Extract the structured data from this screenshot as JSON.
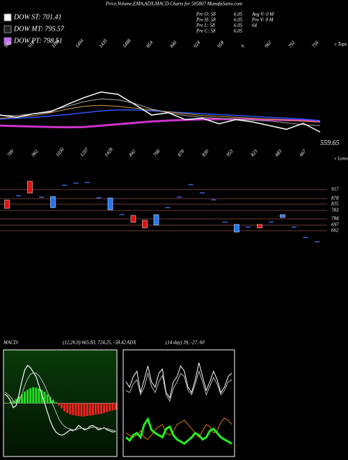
{
  "header": {
    "title": "Price,Volume,EMA,ADX,MACD Charts for 505807 MunafaSutra.com",
    "legend": [
      {
        "label": "DOW ST: 701.41",
        "color": "#ffffff"
      },
      {
        "label": "DOW MT: 795.57",
        "color": "#222222"
      },
      {
        "label": "DOW PT: 798.51",
        "color": "#cc66ff"
      }
    ],
    "info": [
      [
        "Pre O: 58",
        "6.05",
        "Avg V: 0 M"
      ],
      [
        "Pre H: 58",
        "6.05",
        "Pre V: 0 M"
      ],
      [
        "Pre L: 58",
        "6.05",
        "64"
      ],
      [
        "Pre C: 58",
        "6.05",
        ""
      ]
    ]
  },
  "chart_data": [
    {
      "type": "line",
      "ylim": [
        200,
        1600
      ],
      "tops": [
        941,
        910,
        1106,
        1494,
        1435,
        1488,
        854,
        840,
        924,
        958,
        9,
        962,
        792,
        756
      ],
      "tops_label": "« Tops",
      "lows": [
        789,
        962,
        1030,
        1207,
        1428,
        842,
        798,
        878,
        830,
        953,
        823,
        683,
        667
      ],
      "lows_label": "« Lows",
      "last_price": 559.65,
      "series": [
        {
          "color": "#cc33cc",
          "width": 3,
          "values": [
            690,
            685,
            680,
            675,
            672,
            675,
            690,
            705,
            720,
            735,
            745,
            752,
            758,
            760,
            760,
            758,
            755,
            750,
            745,
            735
          ]
        },
        {
          "color": "#3355ff",
          "width": 1.5,
          "values": [
            760,
            770,
            780,
            795,
            810,
            830,
            850,
            860,
            860,
            850,
            840,
            830,
            820,
            810,
            800,
            790,
            780,
            770,
            760,
            745
          ]
        },
        {
          "color": "#d0a040",
          "width": 1,
          "values": [
            770,
            785,
            800,
            830,
            870,
            900,
            910,
            900,
            880,
            860,
            840,
            820,
            800,
            790,
            780,
            770,
            760,
            750,
            740,
            730
          ]
        },
        {
          "color": "#aaaaaa",
          "width": 1,
          "values": [
            800,
            800,
            820,
            850,
            900,
            950,
            980,
            970,
            930,
            870,
            830,
            800,
            780,
            770,
            760,
            750,
            740,
            720,
            700,
            690
          ]
        },
        {
          "color": "#ffffff",
          "width": 1.5,
          "values": [
            805,
            780,
            820,
            840,
            920,
            995,
            1055,
            1030,
            920,
            805,
            830,
            755,
            770,
            710,
            755,
            730,
            690,
            650,
            715,
            620
          ]
        }
      ]
    },
    {
      "type": "candlestick",
      "ylim": [
        600,
        1100
      ],
      "up_color": "#2277ee",
      "down_color": "#dd1111",
      "flat_color": "#3366dd",
      "open": [
        915,
        950,
        1050,
        940,
        860,
        1025,
        1040,
        1045,
        935,
        845,
        815,
        805,
        770,
        735,
        865,
        940,
        1030,
        970,
        920,
        760,
        685,
        725,
        740,
        760,
        790,
        725,
        650,
        620
      ],
      "close": [
        855,
        950,
        965,
        940,
        940,
        1025,
        1040,
        1045,
        935,
        930,
        815,
        755,
        715,
        810,
        865,
        940,
        1030,
        970,
        920,
        760,
        740,
        725,
        715,
        760,
        810,
        725,
        650,
        620
      ],
      "levels": [
        917,
        878,
        835,
        783,
        784,
        697,
        662
      ]
    },
    {
      "type": "macd",
      "label": "MACD:",
      "params": "(12,26,9) 665.83, 724.25, -58.42",
      "ylim": [
        -120,
        120
      ],
      "histogram": [
        0,
        0,
        3,
        6,
        10,
        15,
        20,
        26,
        30,
        34,
        36,
        35,
        33,
        30,
        26,
        20,
        14,
        8,
        2,
        -5,
        -12,
        -18,
        -22,
        -25,
        -27,
        -28,
        -29,
        -30,
        -30,
        -29,
        -28,
        -27,
        -26,
        -25,
        -24,
        -22,
        -20,
        -18,
        -16,
        -15
      ],
      "macd": [
        20,
        15,
        5,
        -10,
        -5,
        20,
        50,
        75,
        85,
        80,
        70,
        60,
        40,
        20,
        0,
        -20,
        -40,
        -55,
        -65,
        -70,
        -72,
        -70,
        -65,
        -60,
        -62,
        -58,
        -50,
        -55,
        -60,
        -58,
        -52,
        -50,
        -55,
        -60,
        -58,
        -55,
        -60,
        -62,
        -65,
        -64
      ],
      "signal": [
        25,
        20,
        15,
        5,
        0,
        5,
        20,
        40,
        55,
        65,
        68,
        68,
        62,
        52,
        40,
        25,
        10,
        -5,
        -20,
        -35,
        -45,
        -52,
        -56,
        -58,
        -60,
        -60,
        -57,
        -56,
        -57,
        -58,
        -56,
        -54,
        -54,
        -56,
        -57,
        -56,
        -57,
        -59,
        -61,
        -62
      ]
    },
    {
      "type": "adx",
      "label": "ADX",
      "params": "(14 day) 39, -27, 60",
      "ylim": [
        0,
        100
      ],
      "series": [
        {
          "color": "#ffffff",
          "width": 1,
          "values": [
            70,
            65,
            75,
            80,
            60,
            72,
            85,
            70,
            65,
            78,
            82,
            60,
            55,
            70,
            75,
            85,
            80,
            65,
            60,
            72,
            88,
            75,
            62,
            70,
            80,
            72,
            60,
            65,
            75,
            78
          ]
        },
        {
          "color": "#bbbbbb",
          "width": 1,
          "values": [
            62,
            60,
            68,
            72,
            58,
            65,
            78,
            66,
            60,
            70,
            76,
            58,
            52,
            64,
            70,
            78,
            75,
            62,
            58,
            68,
            80,
            70,
            58,
            66,
            74,
            68,
            58,
            62,
            70,
            72
          ]
        },
        {
          "color": "#e07a10",
          "width": 1,
          "values": [
            22,
            20,
            18,
            20,
            24,
            18,
            16,
            20,
            25,
            28,
            30,
            22,
            20,
            24,
            30,
            32,
            34,
            30,
            26,
            22,
            18,
            24,
            30,
            28,
            22,
            24,
            32,
            36,
            34,
            30
          ]
        },
        {
          "color": "#22ee22",
          "width": 3,
          "values": [
            18,
            15,
            20,
            22,
            18,
            30,
            35,
            25,
            22,
            20,
            18,
            26,
            28,
            20,
            16,
            14,
            12,
            15,
            18,
            22,
            20,
            16,
            18,
            24,
            26,
            22,
            18,
            16,
            14,
            12
          ]
        }
      ]
    }
  ]
}
